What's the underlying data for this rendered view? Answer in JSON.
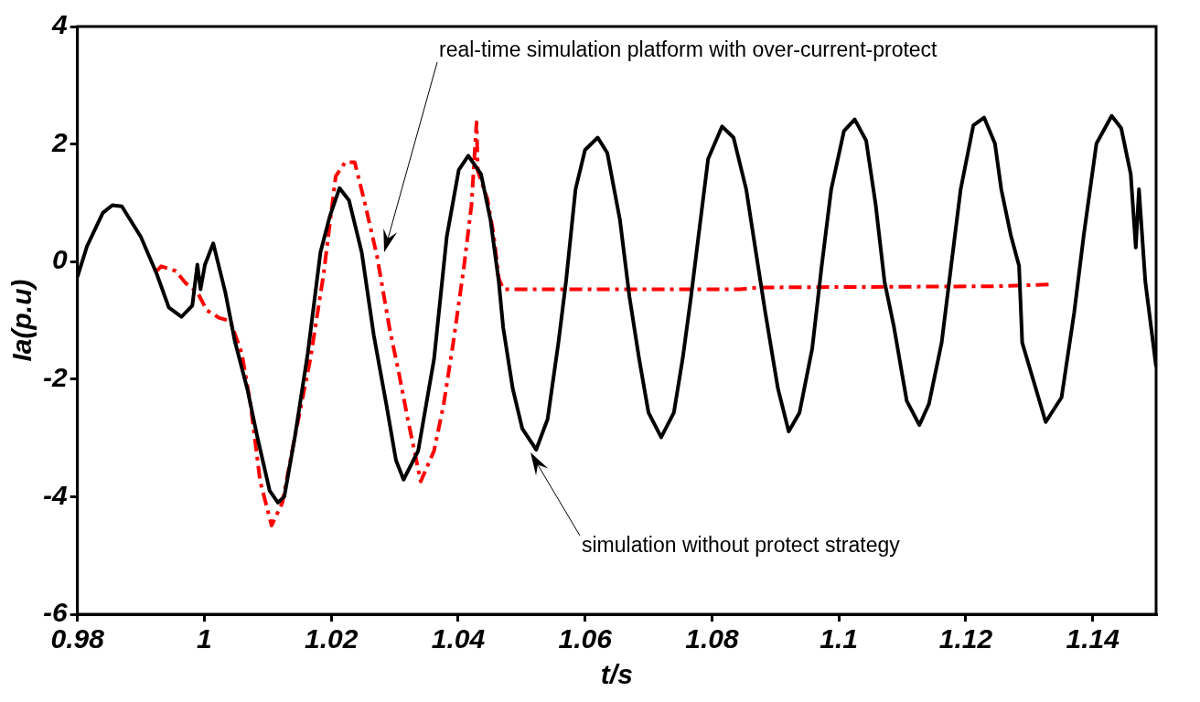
{
  "chart_data": {
    "type": "line",
    "xlabel": "t/s",
    "ylabel": "Ia(p.u)",
    "xlim": [
      0.98,
      1.15
    ],
    "ylim": [
      -6,
      4
    ],
    "xticks": [
      0.98,
      1,
      1.02,
      1.04,
      1.06,
      1.08,
      1.1,
      1.12,
      1.14
    ],
    "yticks": [
      -6,
      -4,
      -2,
      0,
      2,
      4
    ],
    "grid": false,
    "legend": false,
    "marker": "none",
    "annotations": [
      "real-time simulation platform with over-current-protect",
      "simulation without protect strategy"
    ],
    "series": [
      {
        "color": "#000000",
        "line_style": "solid",
        "x": [
          0.98,
          0.9815,
          0.984,
          0.9855,
          0.987,
          0.9885,
          0.99,
          0.9925,
          0.9944,
          0.9964,
          0.9981,
          0.9989,
          0.9994,
          1.0001,
          1.0014,
          1.0033,
          1.0048,
          1.0068,
          1.0083,
          1.0103,
          1.0116,
          1.0126,
          1.0143,
          1.0163,
          1.0183,
          1.0198,
          1.0213,
          1.0228,
          1.0248,
          1.0267,
          1.0287,
          1.0302,
          1.0314,
          1.0337,
          1.0362,
          1.0382,
          1.0401,
          1.0416,
          1.0436,
          1.0451,
          1.0464,
          1.0471,
          1.0486,
          1.0501,
          1.0523,
          1.0541,
          1.0558,
          1.057,
          1.0585,
          1.06,
          1.062,
          1.0635,
          1.0655,
          1.067,
          1.0685,
          1.07,
          1.072,
          1.074,
          1.0754,
          1.0767,
          1.0779,
          1.0794,
          1.0816,
          1.0834,
          1.0854,
          1.0869,
          1.0884,
          1.0904,
          1.0921,
          1.0938,
          1.0958,
          1.0973,
          1.0988,
          1.1008,
          1.1025,
          1.1043,
          1.1058,
          1.1072,
          1.1087,
          1.1107,
          1.1127,
          1.1142,
          1.1162,
          1.1177,
          1.1192,
          1.1212,
          1.1229,
          1.1246,
          1.1256,
          1.1271,
          1.1284,
          1.1289,
          1.1306,
          1.1326,
          1.1351,
          1.1371,
          1.1386,
          1.1406,
          1.143,
          1.1445,
          1.146,
          1.1468,
          1.1473,
          1.1483,
          1.15
        ],
        "values": [
          -0.26,
          0.26,
          0.83,
          0.96,
          0.94,
          0.68,
          0.42,
          -0.21,
          -0.78,
          -0.94,
          -0.75,
          -0.05,
          -0.47,
          -0.05,
          0.31,
          -0.52,
          -1.35,
          -2.18,
          -2.96,
          -3.9,
          -4.1,
          -4.0,
          -2.96,
          -1.56,
          0.16,
          0.78,
          1.25,
          1.04,
          0.16,
          -1.25,
          -2.44,
          -3.38,
          -3.71,
          -3.22,
          -1.66,
          0.42,
          1.56,
          1.8,
          1.49,
          0.71,
          -0.34,
          -1.12,
          -2.16,
          -2.84,
          -3.2,
          -2.68,
          -1.38,
          -0.34,
          1.23,
          1.9,
          2.11,
          1.85,
          0.71,
          -0.6,
          -1.64,
          -2.57,
          -2.99,
          -2.57,
          -1.64,
          -0.6,
          0.45,
          1.75,
          2.3,
          2.11,
          1.23,
          0.18,
          -0.86,
          -2.16,
          -2.89,
          -2.57,
          -1.48,
          -0.07,
          1.23,
          2.22,
          2.42,
          2.06,
          0.97,
          -0.34,
          -1.12,
          -2.37,
          -2.78,
          -2.42,
          -1.38,
          -0.07,
          1.23,
          2.32,
          2.45,
          2.01,
          1.23,
          0.45,
          -0.07,
          -1.38,
          -2.0,
          -2.73,
          -2.31,
          -0.86,
          0.45,
          2.01,
          2.48,
          2.27,
          1.49,
          0.24,
          1.23,
          -0.34,
          -1.79
        ]
      },
      {
        "color": "#ff0000",
        "line_style": "dashed",
        "x": [
          0.9925,
          0.9932,
          0.9955,
          0.997,
          0.9989,
          1.0004,
          1.0024,
          1.0041,
          1.0059,
          1.0073,
          1.0088,
          1.0106,
          1.0123,
          1.0143,
          1.0167,
          1.0188,
          1.0207,
          1.0222,
          1.0237,
          1.0252,
          1.0272,
          1.0292,
          1.0307,
          1.0321,
          1.0341,
          1.0362,
          1.0377,
          1.0392,
          1.0409,
          1.0421,
          1.0429,
          1.0431,
          1.0446,
          1.0456,
          1.0464,
          1.0471,
          1.0844,
          1.0874,
          1.1249,
          1.1331
        ],
        "values": [
          -0.16,
          -0.08,
          -0.16,
          -0.36,
          -0.52,
          -0.83,
          -0.96,
          -1.01,
          -1.56,
          -2.44,
          -3.74,
          -4.49,
          -4.1,
          -2.96,
          -1.66,
          -0.21,
          1.45,
          1.69,
          1.69,
          1.04,
          0.1,
          -1.14,
          -1.92,
          -2.7,
          -3.74,
          -3.22,
          -2.44,
          -1.4,
          -0.1,
          0.96,
          2.37,
          1.54,
          1.07,
          0.45,
          -0.28,
          -0.47,
          -0.47,
          -0.44,
          -0.42,
          -0.39
        ]
      }
    ]
  }
}
